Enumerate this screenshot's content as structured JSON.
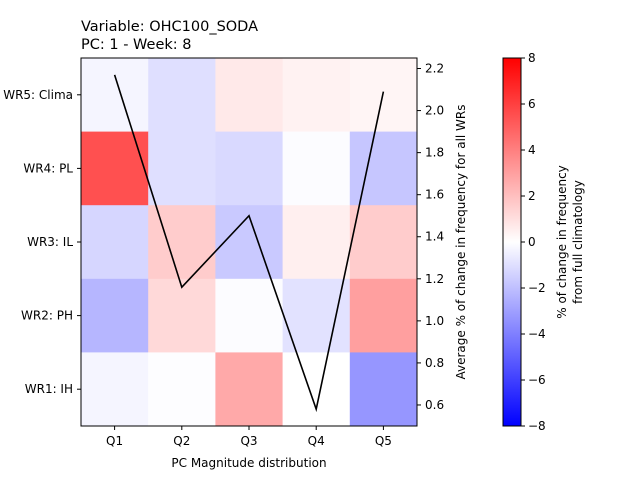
{
  "chart_data": {
    "type": "heatmap",
    "title_lines": [
      "Variable: OHC100_SODA",
      "PC: 1 - Week: 8"
    ],
    "xlabel": "PC Magnitude distribution",
    "categories": [
      "Q1",
      "Q2",
      "Q3",
      "Q4",
      "Q5"
    ],
    "rows": [
      "WR5: Clima",
      "WR4: PL",
      "WR3: IL",
      "WR2: PH",
      "WR1: IH"
    ],
    "row_tick_labels": [
      "WR5: Clima",
      "WR4: PL",
      "WR3: IL",
      "WR2: PH",
      "WR1: IH"
    ],
    "values": [
      [
        -0.3,
        -1.0,
        0.7,
        0.4,
        0.3
      ],
      [
        5.5,
        -1.0,
        -1.2,
        -0.1,
        -1.8
      ],
      [
        -1.3,
        1.6,
        -1.7,
        0.5,
        1.6
      ],
      [
        -2.3,
        1.2,
        -0.1,
        -0.9,
        3.0
      ],
      [
        -0.3,
        -0.05,
        2.7,
        0.0,
        -3.3
      ]
    ],
    "line_series": {
      "values": [
        2.17,
        1.16,
        1.5,
        0.58,
        2.09
      ]
    },
    "right_axis": {
      "label": "Average % of change in frequency for all WRs",
      "ticks": [
        0.6,
        0.8,
        1.0,
        1.2,
        1.4,
        1.6,
        1.8,
        2.0,
        2.2
      ],
      "tick_labels": [
        "0.6",
        "0.8",
        "1.0",
        "1.2",
        "1.4",
        "1.6",
        "1.8",
        "2.0",
        "2.2"
      ],
      "ylim": [
        0.5,
        2.25
      ]
    },
    "colorbar": {
      "label_lines": [
        "% of change in frequency",
        "from full climatology"
      ],
      "range": [
        -8,
        8
      ],
      "ticks": [
        -8,
        -6,
        -4,
        -2,
        0,
        2,
        4,
        6,
        8
      ],
      "tick_labels": [
        "−8",
        "−6",
        "−4",
        "−2",
        "0",
        "2",
        "4",
        "6",
        "8"
      ],
      "colormap": "bwr"
    }
  }
}
